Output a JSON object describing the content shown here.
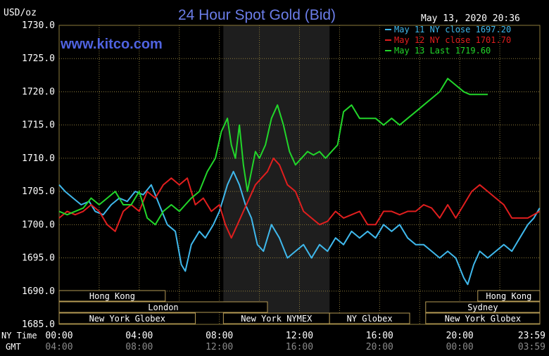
{
  "header": {
    "units": "USD/oz",
    "title": "24 Hour Spot Gold (Bid)",
    "timestamp": "May 13, 2020 20:36",
    "watermark": "www.kitco.com"
  },
  "colors": {
    "title": "#6b7de8",
    "watermark": "#4f63e0",
    "may11": "#3fb8ec",
    "may12": "#e01e1e",
    "may13": "#22d62a",
    "grid": "#8b7a3a",
    "box_border": "#b59a55",
    "nymex_shade": "#1e1e1e"
  },
  "legend": [
    {
      "text": "May 11 NY close 1697.20",
      "color_key": "may11"
    },
    {
      "text": "May 12 NY close 1701.70",
      "color_key": "may12"
    },
    {
      "text": "May 13 Last 1719.60",
      "color_key": "may13"
    }
  ],
  "footer": {
    "ny_time_label": "NY Time",
    "gmt_label": "GMT"
  },
  "sessions": [
    {
      "label": "Hong Kong",
      "row": 0,
      "start": 0,
      "end": 5.3
    },
    {
      "label": "Hong Kong",
      "row": 0,
      "start": 20.9,
      "end": 24
    },
    {
      "label": "London",
      "row": 1,
      "start": 0,
      "end": 10.4
    },
    {
      "label": "Sydney",
      "row": 1,
      "start": 18.3,
      "end": 24
    },
    {
      "label": "New York Globex",
      "row": 2,
      "start": 0,
      "end": 6.8
    },
    {
      "label": "New York NYMEX",
      "row": 2,
      "start": 8.2,
      "end": 13.5
    },
    {
      "label": "NY Globex",
      "row": 2,
      "start": 13.5,
      "end": 17.5
    },
    {
      "label": "New York Globex",
      "row": 2,
      "start": 18.3,
      "end": 24
    }
  ],
  "chart_data": {
    "type": "line",
    "title": "24 Hour Spot Gold (Bid)",
    "ylabel": "USD/oz",
    "ylim": [
      1685,
      1730
    ],
    "xlim": [
      0,
      24
    ],
    "yticks": [
      "1685.0",
      "1690.0",
      "1695.0",
      "1700.0",
      "1705.0",
      "1710.0",
      "1715.0",
      "1720.0",
      "1725.0",
      "1730.0"
    ],
    "xticks_ny": [
      "00:00",
      "04:00",
      "08:00",
      "12:00",
      "16:00",
      "20:00",
      "23:59"
    ],
    "xticks_gmt": [
      "04:00",
      "08:00",
      "12:00",
      "16:00",
      "20:00",
      "00:00",
      "03:59"
    ],
    "nymex_shaded": [
      8.2,
      13.5
    ],
    "grid": true,
    "legend_position": "top-right",
    "series": [
      {
        "name": "May 11 NY close 1697.20",
        "color_key": "may11",
        "x": [
          0,
          0.3,
          0.7,
          1.1,
          1.5,
          1.8,
          2.2,
          2.6,
          3.0,
          3.4,
          3.8,
          4.2,
          4.6,
          5.0,
          5.4,
          5.8,
          6.1,
          6.3,
          6.6,
          7.0,
          7.3,
          7.7,
          8.0,
          8.4,
          8.7,
          9.0,
          9.3,
          9.6,
          9.9,
          10.2,
          10.6,
          11.0,
          11.4,
          11.8,
          12.2,
          12.6,
          13.0,
          13.4,
          13.8,
          14.2,
          14.6,
          15.0,
          15.4,
          15.8,
          16.2,
          16.6,
          17.0,
          17.4,
          17.8,
          18.2,
          18.6,
          19.0,
          19.4,
          19.8,
          20.2,
          20.4,
          20.7,
          21.0,
          21.4,
          21.8,
          22.2,
          22.6,
          23.0,
          23.4,
          23.7,
          23.99
        ],
        "y": [
          1706,
          1705,
          1704,
          1703,
          1703.5,
          1702,
          1701.5,
          1703,
          1704,
          1703.5,
          1705,
          1704.5,
          1706,
          1703,
          1700,
          1699,
          1694,
          1693,
          1697,
          1699,
          1698,
          1700,
          1702,
          1706,
          1708,
          1706,
          1703,
          1701,
          1697,
          1696,
          1700,
          1698,
          1695,
          1696,
          1697,
          1695,
          1697,
          1696,
          1698,
          1697,
          1699,
          1698,
          1699,
          1698,
          1700,
          1699,
          1700,
          1698,
          1697,
          1697,
          1696,
          1695,
          1696,
          1695,
          1692,
          1691,
          1694,
          1696,
          1695,
          1696,
          1697,
          1696,
          1698,
          1700,
          1701,
          1702.5
        ]
      },
      {
        "name": "May 12 NY close 1701.70",
        "color_key": "may12",
        "x": [
          0,
          0.4,
          0.8,
          1.2,
          1.6,
          2.0,
          2.4,
          2.8,
          3.2,
          3.6,
          4.0,
          4.4,
          4.8,
          5.2,
          5.6,
          6.0,
          6.4,
          6.8,
          7.2,
          7.6,
          8.0,
          8.3,
          8.6,
          8.9,
          9.2,
          9.5,
          9.8,
          10.1,
          10.4,
          10.7,
          11.0,
          11.4,
          11.8,
          12.2,
          12.6,
          13.0,
          13.4,
          13.8,
          14.2,
          14.6,
          15.0,
          15.4,
          15.8,
          16.2,
          16.6,
          17.0,
          17.4,
          17.8,
          18.2,
          18.6,
          19.0,
          19.4,
          19.8,
          20.2,
          20.6,
          21.0,
          21.4,
          21.8,
          22.2,
          22.6,
          23.0,
          23.4,
          23.99
        ],
        "y": [
          1701,
          1702,
          1701.5,
          1702,
          1703,
          1702,
          1700,
          1699,
          1702,
          1703,
          1702,
          1705,
          1704,
          1706,
          1707,
          1706,
          1707,
          1703,
          1704,
          1702,
          1703,
          1700,
          1698,
          1700,
          1702,
          1704,
          1706,
          1707,
          1708,
          1710,
          1709,
          1706,
          1705,
          1702,
          1701,
          1700,
          1700.5,
          1702,
          1701,
          1701.5,
          1702,
          1700,
          1700,
          1702,
          1702,
          1701.5,
          1702,
          1702,
          1703,
          1702.5,
          1701,
          1703,
          1701,
          1703,
          1705,
          1706,
          1705,
          1704,
          1703,
          1701,
          1701,
          1701,
          1702
        ]
      },
      {
        "name": "May 13 Last 1719.60",
        "color_key": "may13",
        "x": [
          0,
          0.4,
          0.8,
          1.2,
          1.6,
          2.0,
          2.4,
          2.8,
          3.2,
          3.6,
          4.0,
          4.4,
          4.8,
          5.2,
          5.6,
          6.0,
          6.3,
          6.6,
          7.0,
          7.4,
          7.8,
          8.1,
          8.4,
          8.6,
          8.8,
          9.0,
          9.2,
          9.4,
          9.6,
          9.8,
          10.0,
          10.3,
          10.6,
          10.9,
          11.2,
          11.5,
          11.8,
          12.1,
          12.4,
          12.7,
          13.0,
          13.3,
          13.6,
          13.9,
          14.2,
          14.6,
          15.0,
          15.4,
          15.8,
          16.2,
          16.6,
          17.0,
          17.4,
          17.8,
          18.2,
          18.6,
          19.0,
          19.4,
          19.8,
          20.2,
          20.5,
          20.8,
          21.1,
          21.4
        ],
        "y": [
          1702,
          1701.5,
          1702,
          1702.5,
          1704,
          1703,
          1704,
          1705,
          1703,
          1703,
          1705,
          1701,
          1700,
          1702,
          1703,
          1702,
          1703,
          1704,
          1705,
          1708,
          1710,
          1714,
          1716,
          1712,
          1710,
          1715,
          1709,
          1705,
          1708,
          1711,
          1710,
          1712,
          1716,
          1718,
          1715,
          1711,
          1709,
          1710,
          1711,
          1710.5,
          1711,
          1710,
          1711,
          1712,
          1717,
          1718,
          1716,
          1716,
          1716,
          1715,
          1716,
          1715,
          1716,
          1717,
          1718,
          1719,
          1720,
          1722,
          1721,
          1720,
          1719.6,
          1719.6,
          1719.6,
          1719.6
        ]
      }
    ]
  }
}
